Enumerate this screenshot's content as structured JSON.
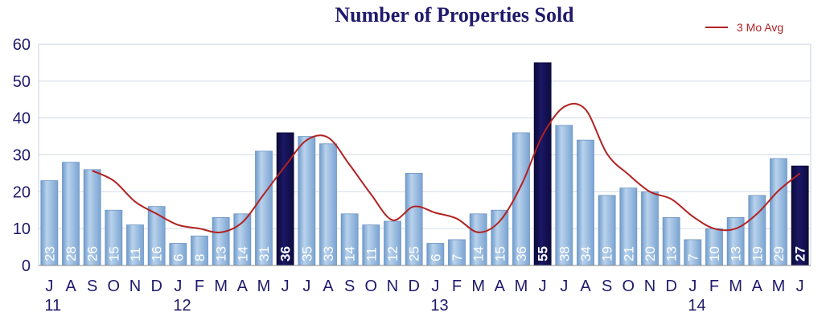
{
  "chart_data": {
    "type": "bar",
    "title": "Number of Properties Sold",
    "xlabel": "",
    "ylabel": "",
    "ylim": [
      0,
      60
    ],
    "yticks": [
      0,
      10,
      20,
      30,
      40,
      50,
      60
    ],
    "grid": true,
    "legend_position": "top-right",
    "categories": [
      "J",
      "A",
      "S",
      "O",
      "N",
      "D",
      "J",
      "F",
      "M",
      "A",
      "M",
      "J",
      "J",
      "A",
      "S",
      "O",
      "N",
      "D",
      "J",
      "F",
      "M",
      "A",
      "M",
      "J",
      "J",
      "A",
      "S",
      "O",
      "N",
      "D",
      "J",
      "F",
      "M",
      "A",
      "M",
      "J"
    ],
    "year_labels": [
      {
        "index": 0,
        "label": "11"
      },
      {
        "index": 6,
        "label": "12"
      },
      {
        "index": 18,
        "label": "13"
      },
      {
        "index": 30,
        "label": "14"
      }
    ],
    "series": [
      {
        "name": "",
        "type": "bar",
        "values": [
          23,
          28,
          26,
          15,
          11,
          16,
          6,
          8,
          13,
          14,
          31,
          36,
          35,
          33,
          14,
          11,
          12,
          25,
          6,
          7,
          14,
          15,
          36,
          55,
          38,
          34,
          19,
          21,
          20,
          13,
          7,
          10,
          13,
          19,
          29,
          27
        ],
        "highlighted_indices": [
          11,
          23,
          35
        ]
      },
      {
        "name": "3 Mo Avg",
        "type": "line",
        "values": [
          null,
          null,
          25.7,
          23,
          17.3,
          14,
          11,
          10,
          9,
          11.7,
          19.3,
          27,
          34,
          34.7,
          27.3,
          19.3,
          12.3,
          16,
          14.3,
          12.7,
          9,
          12,
          21.7,
          35.3,
          43,
          42.3,
          30.3,
          24.7,
          20,
          18,
          13.3,
          10,
          10,
          14,
          20.3,
          25
        ]
      }
    ],
    "colors": {
      "bar": "#8fb4dc",
      "bar_highlight": "#13104e",
      "avg_line": "#b22222",
      "title": "#1f1a6b",
      "axis_text": "#1f1a6b"
    }
  }
}
